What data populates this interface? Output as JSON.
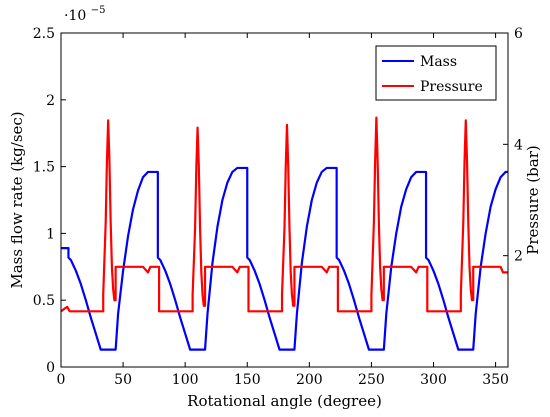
{
  "chart_data": {
    "type": "line",
    "xlabel": "Rotational angle (degree)",
    "ylabel": "Mass flow rate (kg/sec)",
    "y2label": "Pressure (bar)",
    "y_exponent_label": "·10",
    "y_exponent_power": "−5",
    "xlim": [
      0,
      360
    ],
    "ylim": [
      0,
      2.5
    ],
    "y2lim": [
      0,
      6
    ],
    "x_ticks": [
      0,
      50,
      100,
      150,
      200,
      250,
      300,
      350
    ],
    "y_ticks": [
      0,
      0.5,
      1,
      1.5,
      2,
      2.5
    ],
    "y2_ticks": [
      2,
      4,
      6
    ],
    "x_tick_labels": [
      "0",
      "50",
      "100",
      "150",
      "200",
      "250",
      "300",
      "350"
    ],
    "y_tick_labels": [
      "0",
      "0.5",
      "1",
      "1.5",
      "2",
      "2.5"
    ],
    "y2_tick_labels": [
      "2",
      "4",
      "6"
    ],
    "grid": false,
    "legend_position": "top-right",
    "series": [
      {
        "name": "Mass",
        "axis": "left",
        "color": "#0000ff",
        "x": [
          0,
          6,
          6,
          8,
          12,
          16,
          20,
          24,
          28,
          32,
          36,
          40,
          42,
          44,
          46,
          50,
          54,
          58,
          62,
          66,
          70,
          72,
          72,
          78,
          78,
          80,
          84,
          88,
          92,
          96,
          100,
          104,
          108,
          112,
          114,
          116,
          118,
          122,
          126,
          130,
          134,
          138,
          142,
          144,
          144,
          150,
          150,
          152,
          156,
          160,
          164,
          168,
          172,
          176,
          180,
          184,
          186,
          188,
          190,
          194,
          198,
          202,
          206,
          210,
          214,
          216,
          216,
          222,
          222,
          224,
          228,
          232,
          236,
          240,
          244,
          248,
          252,
          256,
          258,
          260,
          262,
          266,
          270,
          274,
          278,
          282,
          286,
          288,
          288,
          294,
          294,
          296,
          300,
          304,
          308,
          312,
          316,
          320,
          324,
          328,
          330,
          332,
          334,
          338,
          342,
          346,
          350,
          354,
          358,
          360
        ],
        "y": [
          0.89,
          0.89,
          0.82,
          0.8,
          0.72,
          0.62,
          0.5,
          0.37,
          0.25,
          0.13,
          0.13,
          0.13,
          0.13,
          0.13,
          0.4,
          0.72,
          0.98,
          1.18,
          1.32,
          1.42,
          1.46,
          1.46,
          1.46,
          1.46,
          0.82,
          0.8,
          0.72,
          0.62,
          0.5,
          0.37,
          0.25,
          0.13,
          0.13,
          0.13,
          0.13,
          0.13,
          0.4,
          0.78,
          1.05,
          1.25,
          1.38,
          1.46,
          1.49,
          1.49,
          1.49,
          1.49,
          0.82,
          0.8,
          0.72,
          0.62,
          0.5,
          0.37,
          0.25,
          0.13,
          0.13,
          0.13,
          0.13,
          0.13,
          0.4,
          0.78,
          1.05,
          1.25,
          1.38,
          1.46,
          1.49,
          1.49,
          1.49,
          1.49,
          0.82,
          0.8,
          0.72,
          0.62,
          0.5,
          0.37,
          0.25,
          0.13,
          0.13,
          0.13,
          0.13,
          0.13,
          0.4,
          0.75,
          1.0,
          1.2,
          1.33,
          1.42,
          1.46,
          1.46,
          1.46,
          1.46,
          0.82,
          0.8,
          0.72,
          0.62,
          0.5,
          0.37,
          0.25,
          0.13,
          0.13,
          0.13,
          0.13,
          0.13,
          0.4,
          0.75,
          1.0,
          1.2,
          1.33,
          1.42,
          1.46,
          1.46
        ]
      },
      {
        "name": "Pressure",
        "axis": "right",
        "color": "#ff0000",
        "x": [
          0,
          3,
          5,
          7,
          7,
          19,
          34,
          34,
          36,
          37,
          38,
          39,
          40,
          41,
          42,
          43,
          44,
          44,
          58,
          62,
          66,
          70,
          72,
          72,
          79,
          79,
          90,
          106,
          106,
          108,
          109,
          110,
          111,
          112,
          113,
          114,
          115,
          116,
          116,
          130,
          134,
          138,
          142,
          144,
          144,
          151,
          151,
          162,
          178,
          178,
          180,
          181,
          182,
          183,
          184,
          185,
          186,
          187,
          188,
          188,
          202,
          206,
          210,
          214,
          216,
          216,
          223,
          223,
          234,
          250,
          250,
          252,
          253,
          254,
          255,
          256,
          257,
          258,
          259,
          260,
          260,
          274,
          278,
          282,
          286,
          288,
          288,
          295,
          295,
          306,
          322,
          322,
          324,
          325,
          326,
          327,
          328,
          329,
          330,
          331,
          332,
          332,
          346,
          350,
          354,
          356,
          356,
          360
        ],
        "y": [
          1.0,
          1.05,
          1.08,
          1.0,
          1.0,
          1.0,
          1.0,
          1.3,
          2.6,
          3.7,
          4.43,
          3.7,
          2.6,
          1.8,
          1.4,
          1.2,
          1.2,
          1.8,
          1.8,
          1.8,
          1.8,
          1.7,
          1.8,
          1.8,
          1.8,
          1.0,
          1.0,
          1.0,
          1.3,
          2.5,
          3.6,
          4.3,
          3.6,
          2.5,
          1.7,
          1.3,
          1.1,
          1.1,
          1.8,
          1.8,
          1.8,
          1.8,
          1.7,
          1.8,
          1.8,
          1.8,
          1.0,
          1.0,
          1.0,
          1.3,
          2.5,
          3.6,
          4.35,
          3.6,
          2.5,
          1.7,
          1.3,
          1.1,
          1.1,
          1.8,
          1.8,
          1.8,
          1.8,
          1.7,
          1.8,
          1.8,
          1.8,
          1.0,
          1.0,
          1.0,
          1.3,
          2.6,
          3.7,
          4.48,
          3.7,
          2.6,
          1.8,
          1.4,
          1.2,
          1.2,
          1.8,
          1.8,
          1.8,
          1.8,
          1.7,
          1.8,
          1.8,
          1.8,
          1.0,
          1.0,
          1.0,
          1.3,
          2.6,
          3.7,
          4.43,
          3.7,
          2.6,
          1.8,
          1.4,
          1.2,
          1.2,
          1.8,
          1.8,
          1.8,
          1.8,
          1.7,
          1.7,
          1.7
        ]
      }
    ]
  }
}
